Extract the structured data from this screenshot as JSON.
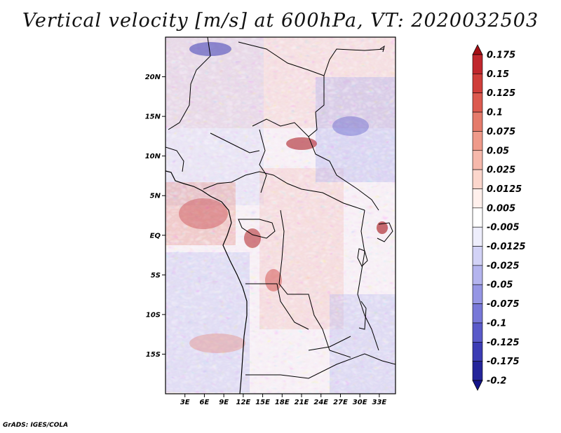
{
  "title": "Vertical velocity [m/s] at 600hPa, VT: 2020032503",
  "credit": "GrADS: IGES/COLA",
  "map": {
    "lat_labels": [
      "20N",
      "15N",
      "10N",
      "5N",
      "EQ",
      "5S",
      "10S",
      "15S"
    ],
    "lat_values": [
      20,
      15,
      10,
      5,
      0,
      -5,
      -10,
      -15
    ],
    "lon_labels": [
      "3E",
      "6E",
      "9E",
      "12E",
      "15E",
      "18E",
      "21E",
      "24E",
      "27E",
      "30E",
      "33E"
    ],
    "lon_values": [
      3,
      6,
      9,
      12,
      15,
      18,
      21,
      24,
      27,
      30,
      33
    ],
    "lat_range": [
      -20,
      25
    ],
    "lon_range": [
      0,
      35.5
    ]
  },
  "colorbar": {
    "labels": [
      "0.175",
      "0.15",
      "0.125",
      "0.1",
      "0.075",
      "0.05",
      "0.025",
      "0.0125",
      "0.005",
      "-0.005",
      "-0.0125",
      "-0.025",
      "-0.05",
      "-0.075",
      "-0.1",
      "-0.125",
      "-0.175",
      "-0.2"
    ],
    "colors": [
      "#a50f15",
      "#c0272d",
      "#cf3e3a",
      "#dc5a4f",
      "#e57b6b",
      "#ef9a8a",
      "#f6b8ab",
      "#fbd6cc",
      "#fff0ec",
      "#ffffff",
      "#eeeefc",
      "#d2d2f6",
      "#b4b4ee",
      "#9696e4",
      "#7878d8",
      "#5a5ac9",
      "#3c3cb4",
      "#25259a",
      "#14148a"
    ]
  }
}
